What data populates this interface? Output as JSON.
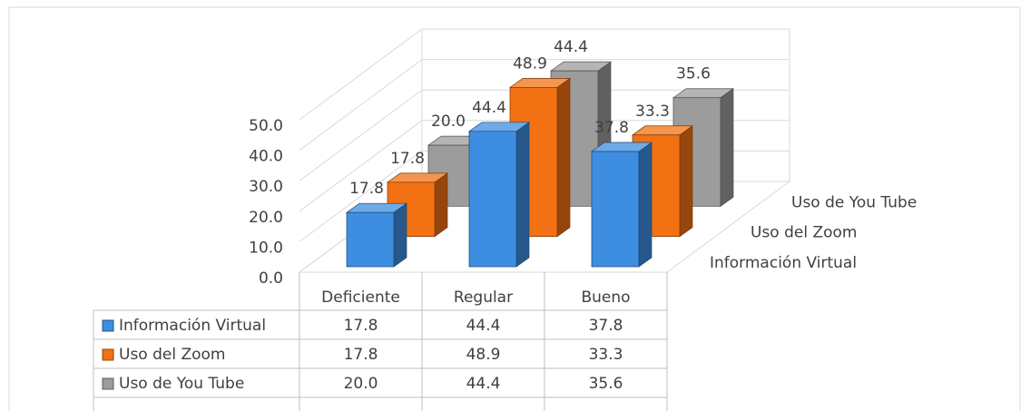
{
  "chart_data": {
    "type": "bar3d",
    "categories": [
      "Deficiente",
      "Regular",
      "Bueno"
    ],
    "series": [
      {
        "name": "Información Virtual",
        "color": "#3d8ee0",
        "values": [
          17.8,
          44.4,
          37.8
        ],
        "value_labels": [
          "17.8",
          "44.4",
          "37.8"
        ]
      },
      {
        "name": "Uso del Zoom",
        "color": "#f27113",
        "values": [
          17.8,
          48.9,
          33.3
        ],
        "value_labels": [
          "17.8",
          "48.9",
          "33.3"
        ]
      },
      {
        "name": "Uso de You Tube",
        "color": "#9c9c9c",
        "values": [
          20.0,
          44.4,
          35.6
        ],
        "value_labels": [
          "20.0",
          "44.4",
          "35.6"
        ]
      }
    ],
    "ylim": [
      0,
      50
    ],
    "yticks": [
      {
        "value": 0,
        "label": "0.0"
      },
      {
        "value": 10,
        "label": "10.0"
      },
      {
        "value": 20,
        "label": "20.0"
      },
      {
        "value": 30,
        "label": "30.0"
      },
      {
        "value": 40,
        "label": "40.0"
      },
      {
        "value": 50,
        "label": "50.0"
      }
    ],
    "grid": true,
    "data_table": true
  }
}
